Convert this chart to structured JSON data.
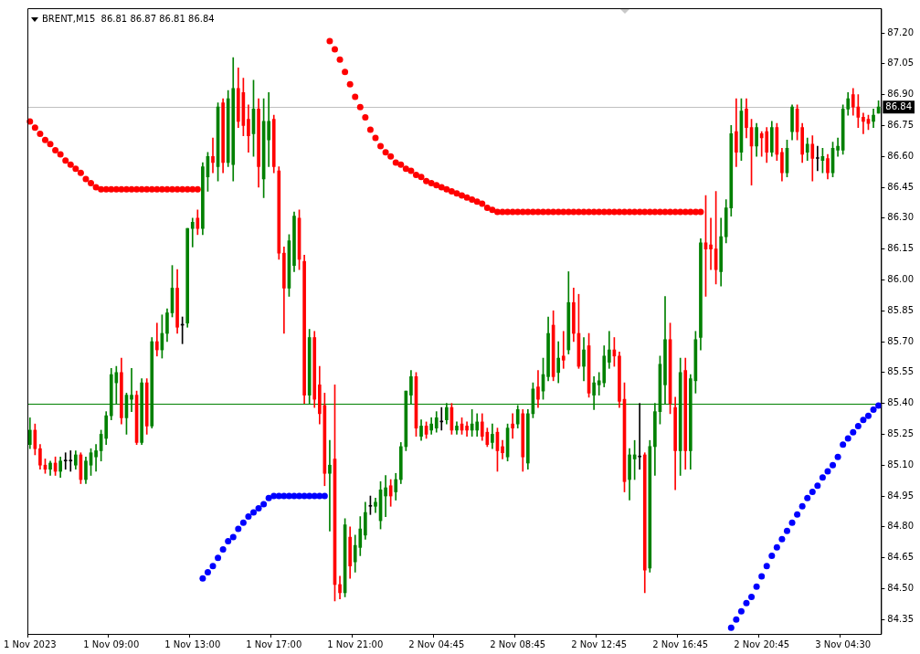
{
  "chart_data": {
    "type": "candlestick",
    "title": "BRENT,M15  86.81 86.87 86.81 86.84",
    "categories": [
      "1 Nov 2023",
      null,
      null,
      null,
      null,
      null,
      null,
      null,
      null,
      null,
      null,
      null,
      null,
      null,
      null,
      null,
      "1 Nov 09:00",
      null,
      null,
      null,
      null,
      null,
      null,
      null,
      null,
      null,
      null,
      null,
      null,
      null,
      null,
      null,
      "1 Nov 13:00",
      null,
      null,
      null,
      null,
      null,
      null,
      null,
      null,
      null,
      null,
      null,
      null,
      null,
      null,
      null,
      "1 Nov 17:00",
      null,
      null,
      null,
      null,
      null,
      null,
      null,
      null,
      null,
      null,
      null,
      null,
      null,
      null,
      null,
      "1 Nov 21:00",
      null,
      null,
      null,
      null,
      null,
      null,
      null,
      null,
      null,
      null,
      null,
      null,
      null,
      null,
      null,
      "2 Nov 04:45",
      null,
      null,
      null,
      null,
      null,
      null,
      null,
      null,
      null,
      null,
      null,
      null,
      null,
      null,
      null,
      "2 Nov 08:45",
      null,
      null,
      null,
      null,
      null,
      null,
      null,
      null,
      null,
      null,
      null,
      null,
      null,
      null,
      null,
      "2 Nov 12:45",
      null,
      null,
      null,
      null,
      null,
      null,
      null,
      null,
      null,
      null,
      null,
      null,
      null,
      null,
      null,
      "2 Nov 16:45",
      null,
      null,
      null,
      null,
      null,
      null,
      null,
      null,
      null,
      null,
      null,
      null,
      null,
      null,
      null,
      "2 Nov 20:45",
      null,
      null,
      null,
      null,
      null,
      null,
      null,
      null,
      null,
      null,
      null,
      null,
      null,
      null,
      null,
      "3 Nov 04:30",
      null,
      null,
      null,
      null,
      null,
      null,
      null
    ],
    "ohlc": [
      [
        85.2,
        85.33,
        85.18,
        85.27
      ],
      [
        85.27,
        85.3,
        85.15,
        85.18
      ],
      [
        85.18,
        85.2,
        85.08,
        85.1
      ],
      [
        85.1,
        85.13,
        85.06,
        85.08
      ],
      [
        85.08,
        85.12,
        85.05,
        85.11
      ],
      [
        85.11,
        85.14,
        85.05,
        85.07
      ],
      [
        85.07,
        85.14,
        85.04,
        85.12
      ],
      [
        85.12,
        85.16,
        85.08,
        85.12
      ],
      [
        85.12,
        85.17,
        85.07,
        85.12
      ],
      [
        85.1,
        85.17,
        85.08,
        85.15
      ],
      [
        85.15,
        85.16,
        85.01,
        85.03
      ],
      [
        85.03,
        85.14,
        85.01,
        85.12
      ],
      [
        85.1,
        85.18,
        85.05,
        85.16
      ],
      [
        85.14,
        85.2,
        85.07,
        85.17
      ],
      [
        85.17,
        85.27,
        85.12,
        85.25
      ],
      [
        85.23,
        85.36,
        85.2,
        85.34
      ],
      [
        85.34,
        85.57,
        85.32,
        85.54
      ],
      [
        85.5,
        85.58,
        85.4,
        85.55
      ],
      [
        85.55,
        85.62,
        85.3,
        85.33
      ],
      [
        85.33,
        85.45,
        85.25,
        85.44
      ],
      [
        85.42,
        85.57,
        85.36,
        85.44
      ],
      [
        85.44,
        85.46,
        85.2,
        85.21
      ],
      [
        85.21,
        85.52,
        85.2,
        85.5
      ],
      [
        85.5,
        85.52,
        85.25,
        85.29
      ],
      [
        85.29,
        85.72,
        85.28,
        85.7
      ],
      [
        85.7,
        85.79,
        85.63,
        85.66
      ],
      [
        85.66,
        85.83,
        85.62,
        85.74
      ],
      [
        85.74,
        85.86,
        85.7,
        85.84
      ],
      [
        85.84,
        86.07,
        85.82,
        85.96
      ],
      [
        85.96,
        86.05,
        85.74,
        85.77
      ],
      [
        85.78,
        85.82,
        85.69,
        85.78
      ],
      [
        85.79,
        86.25,
        85.77,
        86.25
      ],
      [
        86.25,
        86.3,
        86.16,
        86.28
      ],
      [
        86.3,
        86.34,
        86.22,
        86.25
      ],
      [
        86.25,
        86.57,
        86.22,
        86.55
      ],
      [
        86.5,
        86.62,
        86.43,
        86.6
      ],
      [
        86.6,
        86.69,
        86.52,
        86.57
      ],
      [
        86.55,
        86.86,
        86.48,
        86.84
      ],
      [
        86.86,
        86.88,
        86.52,
        86.57
      ],
      [
        86.57,
        86.92,
        86.55,
        86.88
      ],
      [
        86.56,
        87.08,
        86.48,
        86.93
      ],
      [
        86.93,
        87.03,
        86.74,
        86.77
      ],
      [
        86.91,
        86.98,
        86.7,
        86.75
      ],
      [
        86.78,
        86.85,
        86.62,
        86.7
      ],
      [
        86.71,
        86.97,
        86.6,
        86.83
      ],
      [
        86.83,
        86.88,
        86.45,
        86.55
      ],
      [
        86.49,
        86.88,
        86.4,
        86.77
      ],
      [
        86.68,
        86.91,
        86.55,
        86.77
      ],
      [
        86.78,
        86.8,
        86.52,
        86.55
      ],
      [
        86.53,
        86.55,
        86.1,
        86.13
      ],
      [
        86.13,
        86.16,
        85.74,
        85.96
      ],
      [
        85.96,
        86.22,
        85.92,
        86.19
      ],
      [
        86.07,
        86.33,
        86.04,
        86.31
      ],
      [
        86.3,
        86.34,
        86.05,
        86.1
      ],
      [
        86.09,
        86.12,
        85.4,
        85.44
      ],
      [
        85.44,
        85.76,
        85.4,
        85.72
      ],
      [
        85.72,
        85.75,
        85.38,
        85.42
      ],
      [
        85.49,
        85.58,
        85.3,
        85.35
      ],
      [
        85.39,
        85.45,
        85.0,
        85.06
      ],
      [
        85.06,
        85.22,
        84.78,
        85.1
      ],
      [
        85.13,
        85.49,
        84.44,
        84.52
      ],
      [
        84.52,
        84.56,
        84.45,
        84.48
      ],
      [
        84.48,
        84.84,
        84.46,
        84.81
      ],
      [
        84.75,
        84.8,
        84.55,
        84.61
      ],
      [
        84.63,
        84.76,
        84.58,
        84.71
      ],
      [
        84.7,
        84.85,
        84.66,
        84.79
      ],
      [
        84.76,
        84.92,
        84.74,
        84.87
      ],
      [
        84.9,
        84.95,
        84.86,
        84.9
      ],
      [
        84.9,
        84.94,
        84.87,
        84.92
      ],
      [
        84.83,
        85.02,
        84.79,
        84.98
      ],
      [
        84.95,
        85.05,
        84.85,
        84.99
      ],
      [
        85.0,
        85.03,
        84.9,
        84.95
      ],
      [
        84.97,
        85.06,
        84.93,
        85.03
      ],
      [
        85.03,
        85.21,
        85.01,
        85.19
      ],
      [
        85.19,
        85.46,
        85.17,
        85.46
      ],
      [
        85.44,
        85.56,
        85.4,
        85.53
      ],
      [
        85.53,
        85.55,
        85.24,
        85.28
      ],
      [
        85.24,
        85.32,
        85.22,
        85.29
      ],
      [
        85.29,
        85.31,
        85.23,
        85.25
      ],
      [
        85.27,
        85.33,
        85.25,
        85.3
      ],
      [
        85.28,
        85.36,
        85.26,
        85.33
      ],
      [
        85.31,
        85.38,
        85.27,
        85.31
      ],
      [
        85.32,
        85.4,
        85.3,
        85.38
      ],
      [
        85.38,
        85.4,
        85.25,
        85.27
      ],
      [
        85.27,
        85.31,
        85.25,
        85.29
      ],
      [
        85.3,
        85.33,
        85.25,
        85.27
      ],
      [
        85.29,
        85.31,
        85.24,
        85.27
      ],
      [
        85.27,
        85.37,
        85.24,
        85.3
      ],
      [
        85.27,
        85.35,
        85.24,
        85.31
      ],
      [
        85.31,
        85.35,
        85.22,
        85.24
      ],
      [
        85.26,
        85.28,
        85.19,
        85.2
      ],
      [
        85.21,
        85.3,
        85.18,
        85.25
      ],
      [
        85.26,
        85.28,
        85.07,
        85.17
      ],
      [
        85.19,
        85.22,
        85.13,
        85.16
      ],
      [
        85.14,
        85.3,
        85.12,
        85.28
      ],
      [
        85.3,
        85.35,
        85.23,
        85.28
      ],
      [
        85.3,
        85.39,
        85.28,
        85.37
      ],
      [
        85.35,
        85.37,
        85.07,
        85.14
      ],
      [
        85.11,
        85.37,
        85.08,
        85.35
      ],
      [
        85.35,
        85.5,
        85.33,
        85.47
      ],
      [
        85.48,
        85.56,
        85.38,
        85.42
      ],
      [
        85.46,
        85.62,
        85.42,
        85.54
      ],
      [
        85.53,
        85.82,
        85.51,
        85.74
      ],
      [
        85.78,
        85.85,
        85.51,
        85.53
      ],
      [
        85.55,
        85.7,
        85.5,
        85.62
      ],
      [
        85.63,
        85.75,
        85.57,
        85.61
      ],
      [
        85.66,
        86.04,
        85.64,
        85.89
      ],
      [
        85.89,
        85.96,
        85.7,
        85.74
      ],
      [
        85.74,
        85.93,
        85.57,
        85.58
      ],
      [
        85.58,
        85.72,
        85.51,
        85.66
      ],
      [
        85.68,
        85.74,
        85.43,
        85.45
      ],
      [
        85.44,
        85.53,
        85.37,
        85.5
      ],
      [
        85.49,
        85.55,
        85.44,
        85.51
      ],
      [
        85.5,
        85.68,
        85.48,
        85.63
      ],
      [
        85.6,
        85.75,
        85.57,
        85.66
      ],
      [
        85.66,
        85.72,
        85.58,
        85.63
      ],
      [
        85.63,
        85.65,
        85.38,
        85.41
      ],
      [
        85.42,
        85.5,
        84.97,
        85.02
      ],
      [
        85.03,
        85.18,
        84.93,
        85.15
      ],
      [
        85.13,
        85.22,
        85.03,
        85.15
      ],
      [
        85.14,
        85.4,
        85.08,
        85.14
      ],
      [
        85.15,
        85.16,
        84.48,
        84.59
      ],
      [
        84.6,
        85.22,
        84.58,
        85.19
      ],
      [
        85.19,
        85.4,
        85.05,
        85.36
      ],
      [
        85.36,
        85.63,
        85.3,
        85.59
      ],
      [
        85.49,
        85.92,
        85.4,
        85.71
      ],
      [
        85.71,
        85.79,
        85.35,
        85.4
      ],
      [
        85.38,
        85.43,
        84.98,
        85.17
      ],
      [
        85.17,
        85.62,
        85.05,
        85.55
      ],
      [
        85.56,
        85.62,
        85.08,
        85.17
      ],
      [
        85.17,
        85.54,
        85.08,
        85.52
      ],
      [
        85.51,
        85.75,
        85.45,
        85.71
      ],
      [
        85.72,
        86.2,
        85.66,
        86.18
      ],
      [
        86.18,
        86.41,
        85.92,
        86.15
      ],
      [
        86.17,
        86.3,
        86.05,
        86.15
      ],
      [
        86.15,
        86.43,
        85.98,
        86.05
      ],
      [
        86.04,
        86.3,
        85.97,
        86.21
      ],
      [
        86.21,
        86.39,
        86.18,
        86.35
      ],
      [
        86.35,
        86.75,
        86.31,
        86.71
      ],
      [
        86.72,
        86.88,
        86.55,
        86.62
      ],
      [
        86.62,
        86.88,
        86.58,
        86.82
      ],
      [
        86.83,
        86.88,
        86.69,
        86.74
      ],
      [
        86.74,
        86.78,
        86.46,
        86.65
      ],
      [
        86.65,
        86.76,
        86.6,
        86.74
      ],
      [
        86.71,
        86.72,
        86.6,
        86.69
      ],
      [
        86.72,
        86.74,
        86.57,
        86.62
      ],
      [
        86.62,
        86.77,
        86.6,
        86.74
      ],
      [
        86.74,
        86.76,
        86.58,
        86.61
      ],
      [
        86.62,
        86.64,
        86.48,
        86.52
      ],
      [
        86.52,
        86.68,
        86.5,
        86.64
      ],
      [
        86.72,
        86.85,
        86.68,
        86.84
      ],
      [
        86.83,
        86.85,
        86.68,
        86.72
      ],
      [
        86.74,
        86.76,
        86.57,
        86.61
      ],
      [
        86.62,
        86.69,
        86.58,
        86.66
      ],
      [
        86.66,
        86.7,
        86.48,
        86.59
      ],
      [
        86.59,
        86.65,
        86.53,
        86.59
      ],
      [
        86.58,
        86.64,
        86.52,
        86.6
      ],
      [
        86.59,
        86.61,
        86.49,
        86.52
      ],
      [
        86.52,
        86.67,
        86.5,
        86.64
      ],
      [
        86.63,
        86.69,
        86.6,
        86.65
      ],
      [
        86.63,
        86.85,
        86.61,
        86.83
      ],
      [
        86.83,
        86.91,
        86.8,
        86.88
      ],
      [
        86.9,
        86.93,
        86.8,
        86.84
      ],
      [
        86.84,
        86.9,
        86.74,
        86.79
      ],
      [
        86.79,
        86.81,
        86.71,
        86.77
      ],
      [
        86.78,
        86.8,
        86.73,
        86.76
      ],
      [
        86.77,
        86.83,
        86.74,
        86.8
      ],
      [
        86.81,
        86.87,
        86.81,
        86.84
      ]
    ],
    "colors": [
      "#008000",
      "#ff0000",
      "#ff0000",
      "#ff0000",
      "#008000",
      "#ff0000",
      "#008000",
      "#000000",
      "#000000",
      "#008000",
      "#ff0000",
      "#008000",
      "#008000",
      "#008000",
      "#008000",
      "#008000",
      "#008000",
      "#008000",
      "#ff0000",
      "#008000",
      "#008000",
      "#ff0000",
      "#008000",
      "#ff0000",
      "#008000",
      "#ff0000",
      "#008000",
      "#008000",
      "#008000",
      "#ff0000",
      "#000000",
      "#008000",
      "#008000",
      "#ff0000",
      "#008000",
      "#008000",
      "#ff0000",
      "#008000",
      "#ff0000",
      "#008000",
      "#008000",
      "#ff0000",
      "#ff0000",
      "#ff0000",
      "#008000",
      "#ff0000",
      "#008000",
      "#008000",
      "#ff0000",
      "#ff0000",
      "#ff0000",
      "#008000",
      "#008000",
      "#ff0000",
      "#ff0000",
      "#008000",
      "#ff0000",
      "#ff0000",
      "#ff0000",
      "#008000",
      "#ff0000",
      "#ff0000",
      "#008000",
      "#ff0000",
      "#008000",
      "#008000",
      "#008000",
      "#000000",
      "#008000",
      "#008000",
      "#008000",
      "#ff0000",
      "#008000",
      "#008000",
      "#008000",
      "#008000",
      "#ff0000",
      "#008000",
      "#ff0000",
      "#008000",
      "#008000",
      "#000000",
      "#008000",
      "#ff0000",
      "#008000",
      "#ff0000",
      "#ff0000",
      "#008000",
      "#008000",
      "#ff0000",
      "#ff0000",
      "#008000",
      "#ff0000",
      "#ff0000",
      "#008000",
      "#ff0000",
      "#008000",
      "#ff0000",
      "#008000",
      "#008000",
      "#ff0000",
      "#008000",
      "#008000",
      "#ff0000",
      "#008000",
      "#ff0000",
      "#008000",
      "#ff0000",
      "#ff0000",
      "#008000",
      "#ff0000",
      "#008000",
      "#008000",
      "#008000",
      "#008000",
      "#ff0000",
      "#ff0000",
      "#ff0000",
      "#008000",
      "#008000",
      "#000000",
      "#ff0000",
      "#008000",
      "#008000",
      "#008000",
      "#008000",
      "#ff0000",
      "#ff0000",
      "#008000",
      "#ff0000",
      "#008000",
      "#008000",
      "#008000",
      "#ff0000",
      "#ff0000",
      "#ff0000",
      "#008000",
      "#008000",
      "#008000",
      "#ff0000",
      "#008000",
      "#ff0000",
      "#ff0000",
      "#008000",
      "#ff0000",
      "#ff0000",
      "#008000",
      "#ff0000",
      "#ff0000",
      "#008000",
      "#008000",
      "#ff0000",
      "#ff0000",
      "#008000",
      "#ff0000",
      "#000000",
      "#008000",
      "#ff0000",
      "#008000",
      "#008000",
      "#008000",
      "#008000",
      "#ff0000",
      "#ff0000",
      "#ff0000",
      "#ff0000",
      "#008000",
      "#008000"
    ],
    "series": [
      {
        "type": "scatter",
        "color": "#ff0000",
        "values": [
          86.77,
          86.74,
          86.71,
          86.68,
          86.66,
          86.63,
          86.61,
          86.58,
          86.56,
          86.54,
          86.52,
          86.49,
          86.47,
          86.45,
          86.44,
          86.44,
          86.44,
          86.44,
          86.44,
          86.44,
          86.44,
          86.44,
          86.44,
          86.44,
          86.44,
          86.44,
          86.44,
          86.44,
          86.44,
          86.44,
          86.44,
          86.44,
          86.44,
          86.44,
          null,
          null,
          null,
          null,
          null,
          null,
          null,
          null,
          null,
          null,
          null,
          null,
          null,
          null,
          null,
          null,
          null,
          null,
          null,
          null,
          null,
          null,
          null,
          null,
          null,
          87.16,
          87.12,
          87.07,
          87.01,
          86.95,
          86.89,
          86.84,
          86.79,
          86.73,
          86.69,
          86.65,
          86.62,
          86.6,
          86.57,
          86.56,
          86.54,
          86.53,
          86.51,
          86.5,
          86.48,
          86.47,
          86.46,
          86.45,
          86.44,
          86.43,
          86.42,
          86.41,
          86.4,
          86.39,
          86.38,
          86.37,
          86.35,
          86.34,
          86.33,
          86.33,
          86.33,
          86.33,
          86.33,
          86.33,
          86.33,
          86.33,
          86.33,
          86.33,
          86.33,
          86.33,
          86.33,
          86.33,
          86.33,
          86.33,
          86.33,
          86.33,
          86.33,
          86.33,
          86.33,
          86.33,
          86.33,
          86.33,
          86.33,
          86.33,
          86.33,
          86.33,
          86.33,
          86.33,
          86.33,
          86.33,
          86.33,
          86.33,
          86.33,
          86.33,
          86.33,
          86.33,
          86.33,
          86.33,
          86.33,
          null,
          null,
          null,
          null,
          null,
          null,
          null,
          null,
          null,
          null,
          null,
          null,
          null,
          null,
          null,
          null,
          null,
          null,
          null,
          null,
          null,
          null,
          null,
          null,
          null,
          null,
          null,
          null,
          null,
          null,
          null,
          null,
          null,
          null,
          null
        ]
      },
      {
        "type": "scatter",
        "color": "#0000ff",
        "values": [
          null,
          null,
          null,
          null,
          null,
          null,
          null,
          null,
          null,
          null,
          null,
          null,
          null,
          null,
          null,
          null,
          null,
          null,
          null,
          null,
          null,
          null,
          null,
          null,
          null,
          null,
          null,
          null,
          null,
          null,
          null,
          null,
          null,
          null,
          84.55,
          84.58,
          84.61,
          84.65,
          84.69,
          84.73,
          84.75,
          84.79,
          84.82,
          84.85,
          84.87,
          84.89,
          84.91,
          84.94,
          84.95,
          84.95,
          84.95,
          84.95,
          84.95,
          84.95,
          84.95,
          84.95,
          84.95,
          84.95,
          84.95,
          null,
          null,
          null,
          null,
          null,
          null,
          null,
          null,
          null,
          null,
          null,
          null,
          null,
          null,
          null,
          null,
          null,
          null,
          null,
          null,
          null,
          null,
          null,
          null,
          null,
          null,
          null,
          null,
          null,
          null,
          null,
          null,
          null,
          null,
          null,
          null,
          null,
          null,
          null,
          null,
          null,
          null,
          null,
          null,
          null,
          null,
          null,
          null,
          null,
          null,
          null,
          null,
          null,
          null,
          null,
          null,
          null,
          null,
          null,
          null,
          null,
          null,
          null,
          null,
          null,
          null,
          null,
          null,
          null,
          null,
          null,
          null,
          null,
          null,
          null,
          null,
          null,
          null,
          null,
          84.31,
          84.35,
          84.39,
          84.43,
          84.46,
          84.51,
          84.56,
          84.61,
          84.66,
          84.7,
          84.74,
          84.78,
          84.82,
          84.86,
          84.9,
          84.94,
          84.97,
          85.0,
          85.04,
          85.07,
          85.1,
          85.14,
          85.2,
          85.23,
          85.26,
          85.29,
          85.32,
          85.34,
          85.37,
          85.39
        ]
      }
    ],
    "marker": "circle",
    "ylim": [
      84.28,
      87.32
    ],
    "yticks": [
      {
        "value": 87.2,
        "label": "87.20"
      },
      {
        "value": 87.05,
        "label": "87.05"
      },
      {
        "value": 86.9,
        "label": "86.90"
      },
      {
        "value": 86.75,
        "label": "86.75"
      },
      {
        "value": 86.6,
        "label": "86.60"
      },
      {
        "value": 86.45,
        "label": "86.45"
      },
      {
        "value": 86.3,
        "label": "86.30"
      },
      {
        "value": 86.15,
        "label": "86.15"
      },
      {
        "value": 86.0,
        "label": "86.00"
      },
      {
        "value": 85.85,
        "label": "85.85"
      },
      {
        "value": 85.7,
        "label": "85.70"
      },
      {
        "value": 85.55,
        "label": "85.55"
      },
      {
        "value": 85.4,
        "label": "85.40"
      },
      {
        "value": 85.25,
        "label": "85.25"
      },
      {
        "value": 85.1,
        "label": "85.10"
      },
      {
        "value": 84.95,
        "label": "84.95"
      },
      {
        "value": 84.8,
        "label": "84.80"
      },
      {
        "value": 84.65,
        "label": "84.65"
      },
      {
        "value": 84.5,
        "label": "84.50"
      },
      {
        "value": 84.35,
        "label": "84.35"
      }
    ],
    "ref_lines": [
      {
        "axis": "y",
        "value": 85.4,
        "color": "#008000",
        "line_style": "solid"
      },
      {
        "axis": "y",
        "value": 86.84,
        "label": "86.84",
        "color": "#c0c0c0",
        "line_style": "solid"
      }
    ]
  }
}
